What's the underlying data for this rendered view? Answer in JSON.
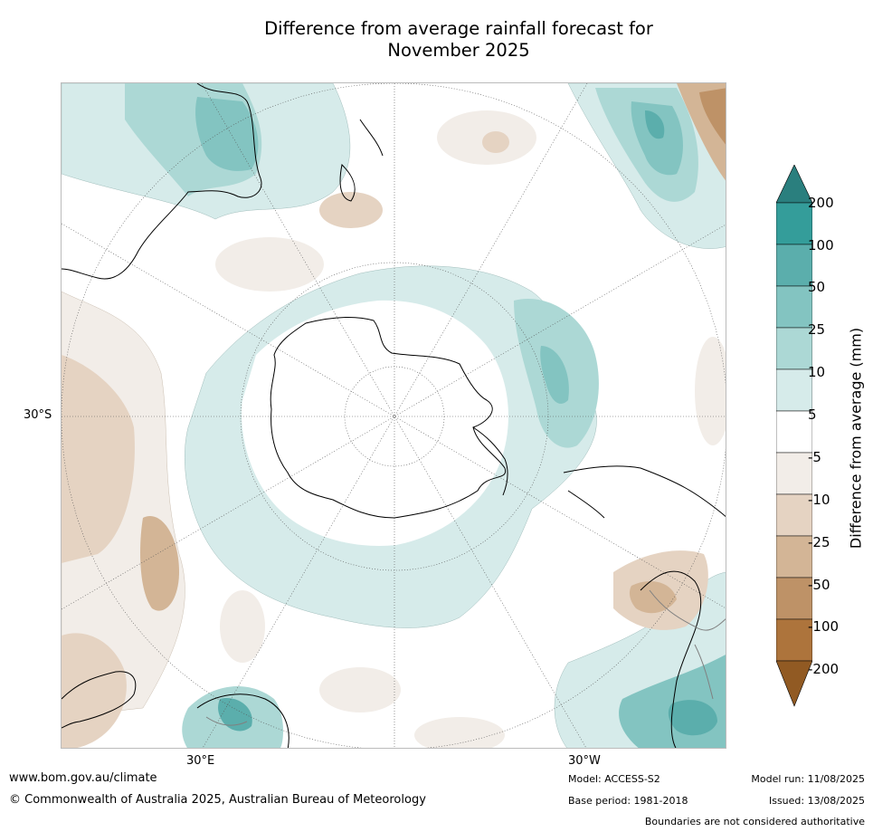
{
  "title_line1": "Difference from average rainfall forecast for",
  "title_line2": "November 2025",
  "map": {
    "lat_label": "30°S",
    "lon_labels": [
      "30°E",
      "30°W"
    ],
    "colors": {
      "wet_200": "#2a7f7e",
      "wet_100": "#349d9a",
      "wet_50": "#5baeac",
      "wet_25": "#83c4c1",
      "wet_10": "#acd8d5",
      "wet_5": "#d6ebea",
      "neutral": "#ffffff",
      "dry_5": "#f2ede8",
      "dry_10": "#e5d3c2",
      "dry_25": "#d3b596",
      "dry_50": "#be9267",
      "dry_100": "#ad743c",
      "dry_200": "#915a23",
      "coast": "#000000",
      "border": "#808080"
    }
  },
  "colorbar": {
    "title": "Difference from average (mm)",
    "ticks": [
      "200",
      "100",
      "50",
      "25",
      "10",
      "5",
      "-5",
      "-10",
      "-25",
      "-50",
      "-100",
      "-200"
    ]
  },
  "footer": {
    "website": "www.bom.gov.au/climate",
    "copyright": "© Commonwealth of Australia 2025, Australian Bureau of Meteorology",
    "model": "Model: ACCESS-S2",
    "model_run": "Model run: 11/08/2025",
    "base_period": "Base period: 1981-2018",
    "issued": "Issued: 13/08/2025",
    "boundaries": "Boundaries are not considered authoritative"
  }
}
